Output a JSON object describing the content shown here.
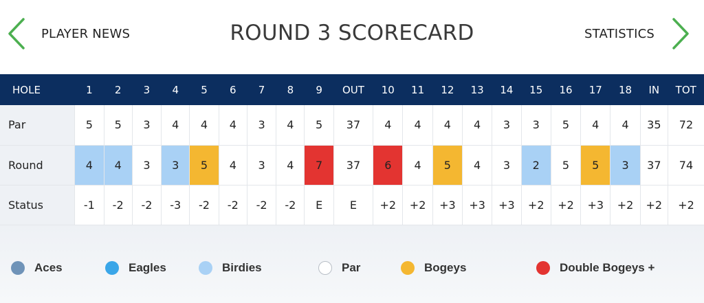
{
  "header": {
    "title": "ROUND 3 SCORECARD",
    "left_nav": "PLAYER NEWS",
    "right_nav": "STATISTICS"
  },
  "table": {
    "columns": [
      "HOLE",
      "1",
      "2",
      "3",
      "4",
      "5",
      "6",
      "7",
      "8",
      "9",
      "OUT",
      "10",
      "11",
      "12",
      "13",
      "14",
      "15",
      "16",
      "17",
      "18",
      "IN",
      "TOT"
    ],
    "rows": [
      {
        "label": "Par",
        "cells": [
          "5",
          "5",
          "3",
          "4",
          "4",
          "4",
          "3",
          "4",
          "5",
          "37",
          "4",
          "4",
          "4",
          "4",
          "3",
          "3",
          "5",
          "4",
          "4",
          "35",
          "72"
        ]
      },
      {
        "label": "Round",
        "cells": [
          "4",
          "4",
          "3",
          "3",
          "5",
          "4",
          "3",
          "4",
          "7",
          "37",
          "6",
          "4",
          "5",
          "4",
          "3",
          "2",
          "5",
          "5",
          "3",
          "37",
          "74"
        ]
      },
      {
        "label": "Status",
        "cells": [
          "-1",
          "-2",
          "-2",
          "-3",
          "-2",
          "-2",
          "-2",
          "-2",
          "E",
          "E",
          "+2",
          "+2",
          "+3",
          "+3",
          "+3",
          "+2",
          "+2",
          "+3",
          "+2",
          "+2",
          "+2"
        ]
      }
    ],
    "round_highlights": [
      "birdie",
      "birdie",
      "",
      "birdie",
      "bogey",
      "",
      "",
      "",
      "double",
      "",
      "double",
      "",
      "bogey",
      "",
      "",
      "birdie",
      "",
      "bogey",
      "birdie",
      "",
      ""
    ]
  },
  "legend": [
    {
      "label": "Aces",
      "color": "#6f93b8"
    },
    {
      "label": "Eagles",
      "color": "#3aa6e8"
    },
    {
      "label": "Birdies",
      "color": "#a9d1f5"
    },
    {
      "label": "Par",
      "color": "#ffffff"
    },
    {
      "label": "Bogeys",
      "color": "#f4b731"
    },
    {
      "label": "Double Bogeys +",
      "color": "#e33431"
    }
  ],
  "colors": {
    "header_bar": "#0c2e5f",
    "chevron": "#4caf50"
  }
}
